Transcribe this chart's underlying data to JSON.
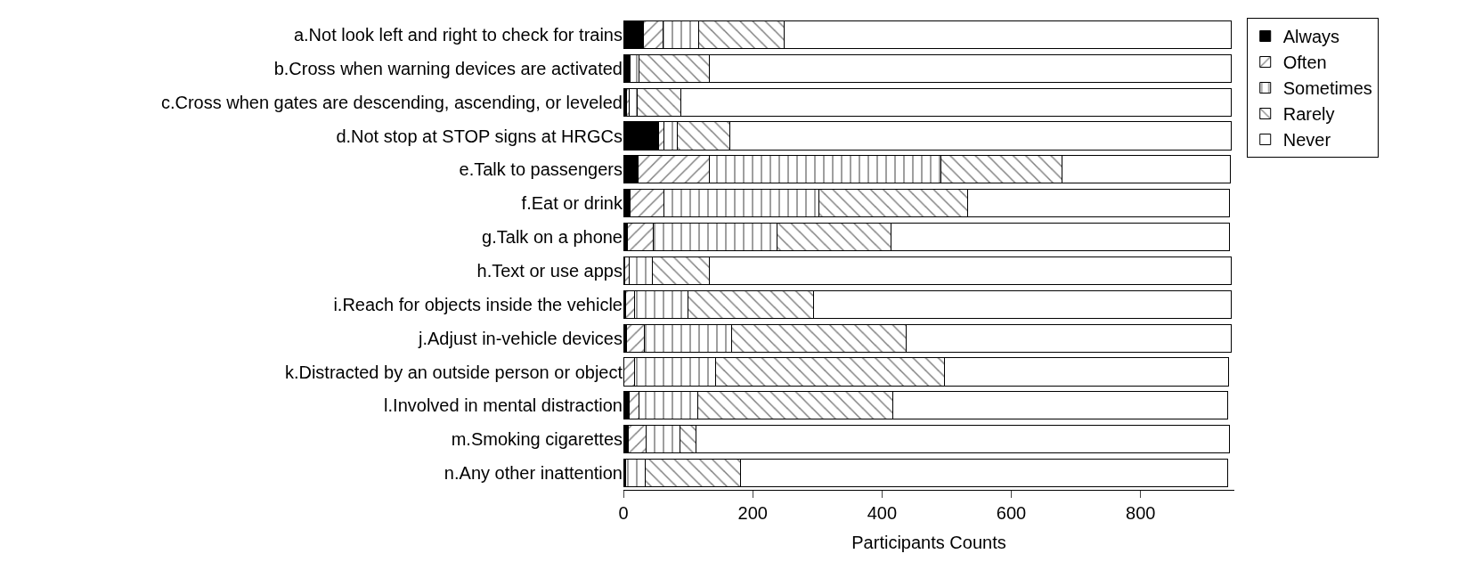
{
  "chart_data": {
    "type": "bar",
    "orientation": "horizontal",
    "stacked": true,
    "xlabel": "Participants Counts",
    "categories": [
      "a.Not look left and right to check for trains",
      "b.Cross when warning devices are activated",
      "c.Cross when gates are descending, ascending, or leveled",
      "d.Not stop at STOP signs at HRGCs",
      "e.Talk to passengers",
      "f.Eat or drink",
      "g.Talk on a phone",
      "h.Text or use apps",
      "i.Reach for objects inside the vehicle",
      "j.Adjust in-vehicle devices",
      "k.Distracted by an outside person or object",
      "l.Involved in mental distraction",
      "m.Smoking cigarettes",
      "n.Any other inattention"
    ],
    "series": [
      {
        "name": "Always",
        "color": "#000000",
        "values": [
          31,
          9,
          5,
          54,
          23,
          10,
          6,
          2,
          4,
          5,
          0,
          9,
          8,
          3
        ]
      },
      {
        "name": "Often",
        "color": "#000000",
        "values": [
          30,
          2,
          4,
          9,
          110,
          53,
          40,
          7,
          13,
          28,
          17,
          15,
          27,
          0
        ]
      },
      {
        "name": "Sometimes",
        "color": "#000000",
        "values": [
          56,
          13,
          12,
          21,
          358,
          240,
          192,
          36,
          83,
          135,
          126,
          91,
          52,
          31
        ]
      },
      {
        "name": "Rarely",
        "color": "#000000",
        "values": [
          131,
          109,
          68,
          81,
          188,
          229,
          176,
          88,
          194,
          269,
          354,
          302,
          25,
          147
        ]
      },
      {
        "name": "Never",
        "color": "#ffffff",
        "values": [
          692,
          807,
          851,
          775,
          260,
          405,
          524,
          807,
          646,
          503,
          439,
          518,
          825,
          754
        ]
      }
    ],
    "xlim": [
      0,
      945
    ],
    "xticks": [
      0,
      200,
      400,
      600,
      800
    ],
    "legend": "top right"
  }
}
